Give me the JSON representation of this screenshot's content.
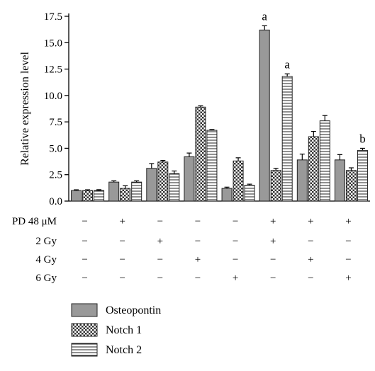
{
  "chart_data": {
    "type": "bar",
    "title": "",
    "xlabel": "",
    "ylabel": "Relative expression level",
    "ylim": [
      0,
      17.5
    ],
    "yticks": [
      "0.0",
      "2.5",
      "5.0",
      "7.5",
      "10.0",
      "12.5",
      "15.0",
      "17.5"
    ],
    "groups": 8,
    "series": [
      {
        "name": "Osteopontin",
        "pattern": "solid-gray",
        "values": [
          1.0,
          1.8,
          3.1,
          4.2,
          1.2,
          16.2,
          3.9,
          3.9
        ],
        "errors": [
          0.07,
          0.12,
          0.45,
          0.35,
          0.12,
          0.4,
          0.55,
          0.5
        ]
      },
      {
        "name": "Notch 1",
        "pattern": "checker",
        "values": [
          1.0,
          1.2,
          3.7,
          8.9,
          3.8,
          2.9,
          6.1,
          2.9
        ],
        "errors": [
          0.07,
          0.25,
          0.15,
          0.12,
          0.3,
          0.2,
          0.5,
          0.25
        ]
      },
      {
        "name": "Notch 2",
        "pattern": "horizontal-lines",
        "values": [
          1.0,
          1.8,
          2.6,
          6.7,
          1.5,
          11.8,
          7.6,
          4.8
        ],
        "errors": [
          0.08,
          0.12,
          0.25,
          0.08,
          0.1,
          0.25,
          0.5,
          0.2
        ]
      }
    ],
    "conditions": [
      {
        "label": "PD 48 μM",
        "marks": [
          "−",
          "+",
          "−",
          "−",
          "−",
          "+",
          "+",
          "+"
        ]
      },
      {
        "label": "2 Gy",
        "marks": [
          "−",
          "−",
          "+",
          "−",
          "−",
          "+",
          "−",
          "−"
        ]
      },
      {
        "label": "4 Gy",
        "marks": [
          "−",
          "−",
          "−",
          "+",
          "−",
          "−",
          "+",
          "−"
        ]
      },
      {
        "label": "6 Gy",
        "marks": [
          "−",
          "−",
          "−",
          "−",
          "+",
          "−",
          "−",
          "+"
        ]
      }
    ],
    "annotations": [
      {
        "text": "a",
        "group": 5,
        "series": 0
      },
      {
        "text": "a",
        "group": 5,
        "series": 2
      },
      {
        "text": "b",
        "group": 7,
        "series": 2
      }
    ],
    "legend_position": "bottom-left",
    "grid": false
  }
}
